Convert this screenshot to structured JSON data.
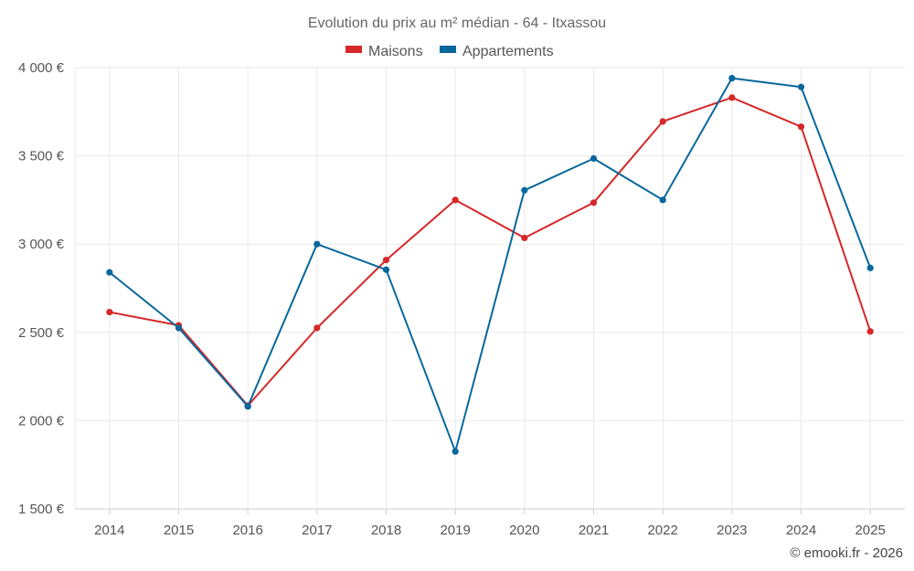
{
  "chart_data": {
    "type": "line",
    "title": "Evolution du prix au m² médian - 64 - Itxassou",
    "categories": [
      "2014",
      "2015",
      "2016",
      "2017",
      "2018",
      "2019",
      "2020",
      "2021",
      "2022",
      "2023",
      "2024",
      "2025"
    ],
    "series": [
      {
        "name": "Maisons",
        "color": "#d62728",
        "values": [
          2615,
          2540,
          2085,
          2525,
          2910,
          3250,
          3035,
          3235,
          3695,
          3830,
          3665,
          2505
        ]
      },
      {
        "name": "Appartements",
        "color": "#08679c",
        "values": [
          2840,
          2525,
          2080,
          3000,
          2855,
          1825,
          3305,
          3485,
          3250,
          3940,
          3890,
          2865
        ]
      }
    ],
    "y_ticks": [
      "1 500 €",
      "2 000 €",
      "2 500 €",
      "3 000 €",
      "3 500 €",
      "4 000 €"
    ],
    "y_tick_values": [
      1500,
      2000,
      2500,
      3000,
      3500,
      4000
    ],
    "ylim": [
      1500,
      4000
    ],
    "xlabel": "",
    "ylabel": "",
    "grid": true,
    "legend": "top-center"
  },
  "credit": "© emooki.fr - 2026"
}
